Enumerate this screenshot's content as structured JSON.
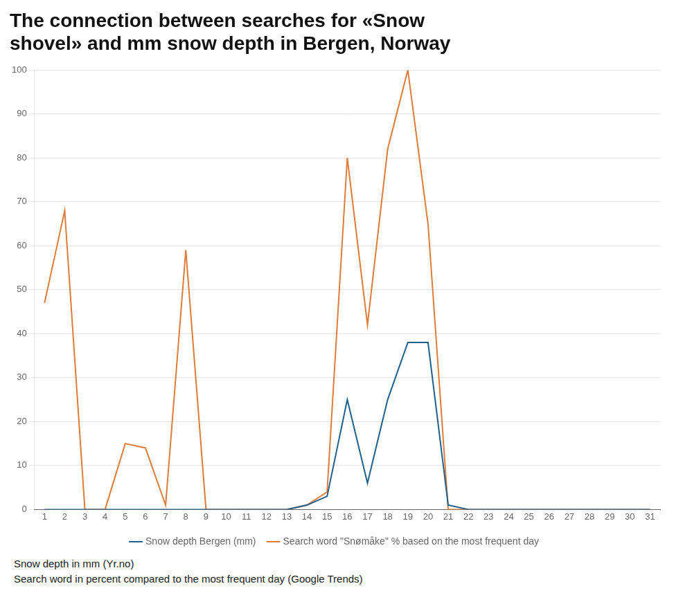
{
  "chart_data": {
    "type": "line",
    "title": [
      "The connection between searches for «Snow",
      "shovel» and mm snow depth in Bergen, Norway"
    ],
    "annotations": [
      "Snow depth in mm (Yr.no)",
      "Search word in percent compared to the most frequent day (Google Trends)"
    ],
    "x": [
      1,
      2,
      3,
      4,
      5,
      6,
      7,
      8,
      9,
      10,
      11,
      12,
      13,
      14,
      15,
      16,
      17,
      18,
      19,
      20,
      21,
      22,
      23,
      24,
      25,
      26,
      27,
      28,
      29,
      30,
      31
    ],
    "series": [
      {
        "name": "Snow depth Bergen (mm)",
        "color": "#1f5f8b",
        "values": [
          0,
          0,
          0,
          0,
          0,
          0,
          0,
          0,
          0,
          0,
          0,
          0,
          0,
          1,
          3,
          25,
          6,
          25,
          38,
          38,
          1,
          0,
          0,
          0,
          0,
          0,
          0,
          0,
          0,
          0,
          0
        ]
      },
      {
        "name": "Search word \"Snømåke\" % based on the most frequent day",
        "color": "#e07b39",
        "values": [
          47,
          68,
          0,
          0,
          15,
          14,
          1,
          59,
          0,
          0,
          0,
          0,
          0,
          1,
          4,
          80,
          42,
          82,
          100,
          65,
          0,
          0,
          0,
          0,
          0,
          0,
          0,
          0,
          0,
          0,
          0
        ]
      }
    ],
    "xlim": [
      0.5,
      31.5
    ],
    "xticks": [
      1,
      2,
      3,
      4,
      5,
      6,
      7,
      8,
      9,
      10,
      11,
      12,
      13,
      14,
      15,
      16,
      17,
      18,
      19,
      20,
      21,
      22,
      23,
      24,
      25,
      26,
      27,
      28,
      29,
      30,
      31
    ],
    "ylim": [
      0,
      100
    ],
    "yticks": [
      0,
      10,
      20,
      30,
      40,
      50,
      60,
      70,
      80,
      90,
      100
    ],
    "grid": "y",
    "legend": "bottom"
  }
}
